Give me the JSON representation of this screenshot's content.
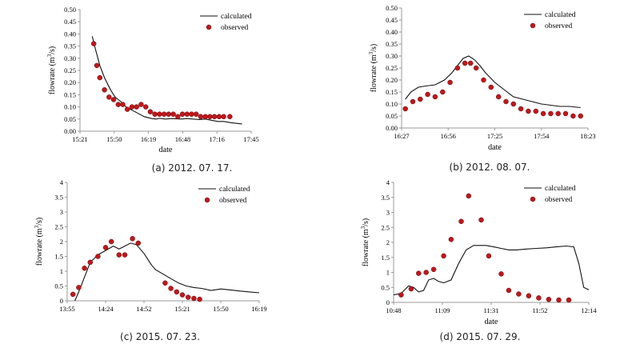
{
  "chart_data": [
    {
      "id": "a",
      "type": "line",
      "caption": "(a) 2012. 07. 17.",
      "xlabel": "date",
      "ylabel": "flowrate (m³/s)",
      "ylabel_base": "flowrate (m",
      "ylabel_sup": "3",
      "ylabel_tail": "/s)",
      "x_ticks": [
        "15:21",
        "15:50",
        "16:19",
        "16:48",
        "17:16",
        "17:45"
      ],
      "y_ticks": [
        "0.00",
        "0.05",
        "0.10",
        "0.15",
        "0.20",
        "0.25",
        "0.30",
        "0.35",
        "0.40",
        "0.45",
        "0.50"
      ],
      "ylim": [
        0,
        0.5
      ],
      "legend": {
        "calculated": "calculated",
        "observed": "observed"
      },
      "series": [
        {
          "name": "calculated",
          "kind": "line",
          "x": [
            0.8,
            1.0,
            1.3,
            1.6,
            2.0,
            2.3,
            2.7,
            3.0,
            3.6,
            4.2,
            4.7,
            5.0,
            5.2,
            5.6,
            6.0,
            6.6,
            7.0,
            7.4,
            7.8,
            8.2,
            8.6,
            9.0,
            9.4,
            9.9,
            10.3,
            10.6
          ],
          "y": [
            0.39,
            0.34,
            0.27,
            0.22,
            0.17,
            0.14,
            0.12,
            0.1,
            0.08,
            0.06,
            0.052,
            0.05,
            0.053,
            0.05,
            0.052,
            0.05,
            0.052,
            0.05,
            0.048,
            0.05,
            0.045,
            0.04,
            0.04,
            0.035,
            0.032,
            0.03
          ]
        },
        {
          "name": "observed",
          "kind": "scatter",
          "x": [
            0.9,
            1.1,
            1.3,
            1.6,
            1.9,
            2.2,
            2.5,
            2.8,
            3.1,
            3.4,
            3.7,
            4.0,
            4.3,
            4.6,
            4.9,
            5.2,
            5.5,
            5.8,
            6.1,
            6.4,
            6.7,
            7.0,
            7.3,
            7.6,
            7.9,
            8.2,
            8.5,
            8.8,
            9.1,
            9.4,
            9.8
          ],
          "y": [
            0.36,
            0.27,
            0.22,
            0.17,
            0.14,
            0.13,
            0.11,
            0.11,
            0.09,
            0.1,
            0.1,
            0.11,
            0.1,
            0.08,
            0.07,
            0.07,
            0.07,
            0.07,
            0.07,
            0.06,
            0.07,
            0.07,
            0.07,
            0.07,
            0.06,
            0.06,
            0.06,
            0.06,
            0.06,
            0.06,
            0.06
          ]
        }
      ],
      "xlim": [
        0,
        11.2
      ]
    },
    {
      "id": "b",
      "type": "line",
      "caption": "(b) 2012. 08. 07.",
      "xlabel": "date",
      "ylabel": "flowrate (m³/s)",
      "ylabel_base": "flowrate (m",
      "ylabel_sup": "3",
      "ylabel_tail": "/s)",
      "x_ticks": [
        "16:27",
        "16:56",
        "17:25",
        "17:54",
        "18:23"
      ],
      "y_ticks": [
        "0.00",
        "0.05",
        "0.10",
        "0.15",
        "0.20",
        "0.25",
        "0.30",
        "0.35",
        "0.40",
        "0.45",
        "0.50"
      ],
      "ylim": [
        0,
        0.5
      ],
      "legend": {
        "calculated": "calculated",
        "observed": "observed"
      },
      "series": [
        {
          "name": "calculated",
          "kind": "line",
          "x": [
            0.2,
            0.5,
            0.9,
            1.3,
            1.8,
            2.3,
            2.7,
            3.0,
            3.3,
            3.6,
            3.9,
            4.2,
            4.5,
            5.0,
            5.5,
            6.0,
            6.5,
            7.0,
            7.5,
            8.0,
            8.5,
            9.0,
            9.6
          ],
          "y": [
            0.12,
            0.15,
            0.17,
            0.175,
            0.18,
            0.2,
            0.23,
            0.26,
            0.29,
            0.3,
            0.285,
            0.26,
            0.23,
            0.19,
            0.16,
            0.13,
            0.12,
            0.11,
            0.1,
            0.095,
            0.09,
            0.09,
            0.085
          ]
        },
        {
          "name": "observed",
          "kind": "scatter",
          "x": [
            0.2,
            0.6,
            1.0,
            1.4,
            1.8,
            2.2,
            2.6,
            3.0,
            3.4,
            3.7,
            4.0,
            4.4,
            4.8,
            5.2,
            5.6,
            6.0,
            6.4,
            6.8,
            7.2,
            7.6,
            8.0,
            8.4,
            8.8,
            9.2,
            9.6
          ],
          "y": [
            0.08,
            0.11,
            0.12,
            0.14,
            0.13,
            0.15,
            0.19,
            0.25,
            0.27,
            0.27,
            0.25,
            0.2,
            0.17,
            0.13,
            0.11,
            0.1,
            0.08,
            0.07,
            0.07,
            0.06,
            0.06,
            0.06,
            0.06,
            0.05,
            0.05
          ]
        }
      ],
      "xlim": [
        0,
        10
      ]
    },
    {
      "id": "c",
      "type": "line",
      "caption": "(c) 2015. 07. 23.",
      "xlabel": "",
      "ylabel": "flowrate (m³/s)",
      "ylabel_base": "flowrate (m",
      "ylabel_sup": "3",
      "ylabel_tail": "/s)",
      "x_ticks": [
        "13:55",
        "14:24",
        "14:52",
        "15:21",
        "15:50",
        "16:19"
      ],
      "y_ticks": [
        "0",
        "0.5",
        "1",
        "1.5",
        "2",
        "2.5",
        "3",
        "3.5",
        "4"
      ],
      "ylim": [
        0,
        4
      ],
      "legend": {
        "calculated": "calculated",
        "observed": "observed"
      },
      "series": [
        {
          "name": "calculated",
          "kind": "line",
          "x": [
            0.4,
            0.6,
            0.9,
            1.2,
            1.6,
            2.0,
            2.4,
            2.7,
            3.0,
            3.3,
            3.6,
            4.0,
            4.4,
            4.6,
            5.0,
            5.4,
            5.8,
            6.2,
            6.6,
            7.0,
            7.5,
            8.0,
            8.3,
            8.6,
            9.0,
            9.5,
            10.0
          ],
          "y": [
            0.0,
            0.3,
            0.8,
            1.3,
            1.55,
            1.7,
            1.85,
            1.75,
            1.85,
            1.95,
            1.9,
            1.6,
            1.2,
            1.05,
            0.9,
            0.75,
            0.6,
            0.5,
            0.45,
            0.42,
            0.35,
            0.4,
            0.38,
            0.36,
            0.33,
            0.3,
            0.27
          ]
        },
        {
          "name": "observed",
          "kind": "scatter",
          "x": [
            0.3,
            0.6,
            0.9,
            1.2,
            1.6,
            2.0,
            2.3,
            2.7,
            3.0,
            3.4,
            3.7,
            5.1,
            5.4,
            5.7,
            6.0,
            6.3,
            6.6,
            6.9
          ],
          "y": [
            0.22,
            0.45,
            1.1,
            1.3,
            1.5,
            1.8,
            2.0,
            1.55,
            1.55,
            2.1,
            1.95,
            0.6,
            0.42,
            0.3,
            0.2,
            0.12,
            0.08,
            0.05
          ]
        }
      ],
      "xlim": [
        0,
        10
      ]
    },
    {
      "id": "d",
      "type": "line",
      "caption": "(d) 2015. 07. 29.",
      "xlabel": "date",
      "ylabel": "flowrate (m³/s)",
      "ylabel_base": "flowrate (m",
      "ylabel_sup": "3",
      "ylabel_tail": "/s)",
      "x_ticks": [
        "10:48",
        "11:09",
        "11:31",
        "11:52",
        "12:14"
      ],
      "y_ticks": [
        "0",
        "0.5",
        "1",
        "1.5",
        "2",
        "2.5",
        "3",
        "3.5",
        "4"
      ],
      "ylim": [
        0,
        4
      ],
      "legend": {
        "calculated": "calculated",
        "observed": "observed"
      },
      "series": [
        {
          "name": "calculated",
          "kind": "line",
          "x": [
            0.0,
            0.3,
            0.6,
            0.8,
            1.0,
            1.2,
            1.4,
            1.6,
            1.8,
            2.0,
            2.3,
            2.6,
            2.9,
            3.2,
            3.5,
            3.7,
            4.0,
            4.3,
            4.6,
            4.9,
            5.3,
            5.7,
            6.1,
            6.5,
            6.9,
            7.2,
            7.4,
            7.6,
            7.8
          ],
          "y": [
            0.25,
            0.3,
            0.55,
            0.5,
            0.35,
            0.4,
            0.75,
            0.8,
            0.7,
            0.65,
            0.75,
            1.3,
            1.75,
            1.9,
            1.9,
            1.9,
            1.85,
            1.8,
            1.75,
            1.75,
            1.78,
            1.8,
            1.82,
            1.85,
            1.88,
            1.85,
            1.3,
            0.5,
            0.42
          ]
        },
        {
          "name": "observed",
          "kind": "scatter",
          "x": [
            0.3,
            0.7,
            1.0,
            1.3,
            1.6,
            2.0,
            2.3,
            2.7,
            3.0,
            3.5,
            3.8,
            4.3,
            4.6,
            5.0,
            5.4,
            5.8,
            6.2,
            6.6,
            7.0
          ],
          "y": [
            0.25,
            0.45,
            0.97,
            1.0,
            1.1,
            1.55,
            2.1,
            2.7,
            3.55,
            2.75,
            1.55,
            0.95,
            0.4,
            0.28,
            0.22,
            0.15,
            0.1,
            0.08,
            0.08
          ]
        }
      ],
      "xlim": [
        0,
        7.8
      ]
    }
  ]
}
